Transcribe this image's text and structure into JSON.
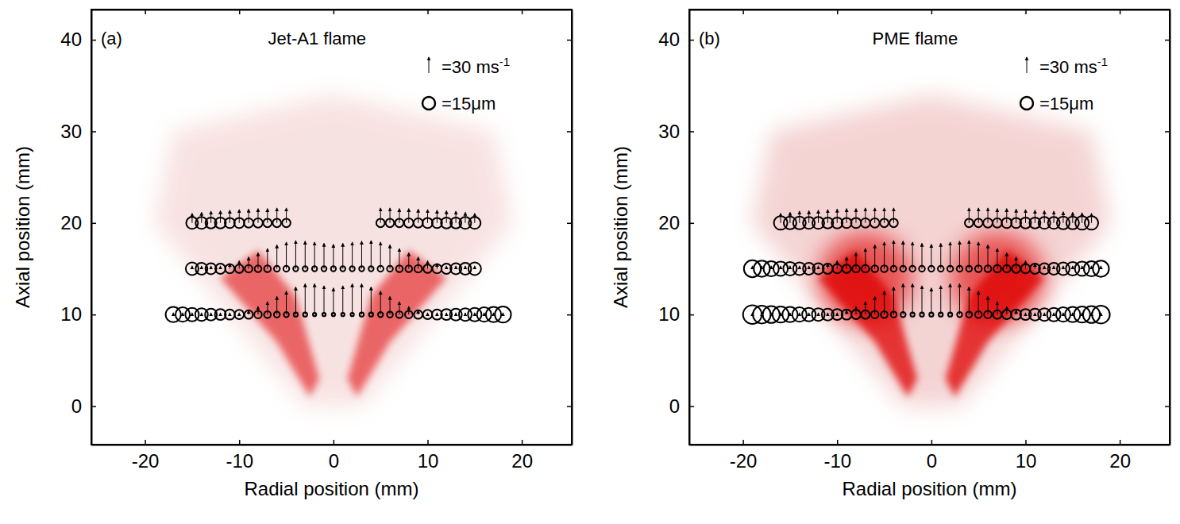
{
  "chart_data": [
    {
      "type": "scatter",
      "title": "Jet-A1 flame",
      "annotations": [
        "(a)"
      ],
      "x_label": "Radial position (mm)",
      "y_label": "Axial position (mm)",
      "xlim": [
        -25.7,
        25.3
      ],
      "ylim": [
        -4.2,
        43.3
      ],
      "xticks": [
        -20,
        -10,
        0,
        10,
        20
      ],
      "yticks": [
        0,
        10,
        20,
        30,
        40
      ],
      "grid": false,
      "legend": "upper right",
      "color": "#000000",
      "marker": "circle",
      "velocity_scale": {
        "value": 30,
        "label": "=30 ms",
        "superscript": "-1"
      },
      "size_scale": {
        "value": 15,
        "label": "=15μm"
      },
      "series": [
        {
          "axial_position": 10,
          "x": [
            -17,
            -16,
            -15,
            -14,
            -13,
            -12,
            -11,
            -10,
            -9,
            -8,
            -7,
            -6,
            -5,
            -4,
            -3,
            -2,
            -1,
            0,
            1,
            2,
            3,
            4,
            5,
            6,
            7,
            8,
            9,
            10,
            11,
            12,
            13,
            14,
            15,
            16,
            17,
            18
          ],
          "velocity": [
            3,
            3,
            3,
            3,
            3,
            3,
            3,
            3,
            8,
            15,
            24,
            34,
            44,
            52,
            58,
            58,
            54,
            50,
            54,
            58,
            58,
            52,
            44,
            34,
            24,
            15,
            8,
            3,
            3,
            3,
            3,
            3,
            3,
            3,
            3,
            3
          ],
          "diameter": [
            18,
            17,
            16,
            15,
            14,
            13,
            12,
            11,
            10,
            9,
            8,
            7,
            6,
            5,
            5,
            4,
            4,
            4,
            4,
            4,
            5,
            5,
            6,
            7,
            8,
            9,
            10,
            11,
            12,
            13,
            14,
            15,
            16,
            17,
            18,
            19
          ]
        },
        {
          "axial_position": 15,
          "x": [
            -15,
            -14,
            -13,
            -12,
            -11,
            -10,
            -9,
            -8,
            -7,
            -6,
            -5,
            -4,
            -3,
            -2,
            -1,
            0,
            1,
            2,
            3,
            4,
            5,
            6,
            7,
            8,
            9,
            10,
            11,
            12,
            13,
            14,
            15
          ],
          "velocity": [
            5,
            5,
            5,
            5,
            10,
            15,
            22,
            30,
            38,
            45,
            50,
            53,
            52,
            50,
            48,
            46,
            48,
            50,
            52,
            53,
            50,
            45,
            38,
            30,
            22,
            15,
            10,
            5,
            5,
            5,
            5
          ],
          "diameter": [
            15,
            14,
            13,
            12,
            11,
            10,
            9,
            8,
            8,
            7,
            7,
            6,
            6,
            6,
            6,
            6,
            6,
            6,
            6,
            6,
            7,
            7,
            8,
            8,
            9,
            10,
            11,
            12,
            13,
            14,
            15
          ]
        },
        {
          "axial_position": 20,
          "x": [
            -15,
            -14,
            -13,
            -12,
            -11,
            -10,
            -9,
            -8,
            -7,
            -6,
            -5,
            5,
            6,
            7,
            8,
            9,
            10,
            11,
            12,
            13,
            14,
            15
          ],
          "velocity": [
            18,
            20,
            22,
            23,
            24,
            25,
            26,
            27,
            27,
            28,
            28,
            28,
            28,
            27,
            27,
            26,
            25,
            24,
            23,
            22,
            20,
            18
          ],
          "diameter": [
            14,
            14,
            13,
            13,
            12,
            12,
            11,
            11,
            10,
            10,
            10,
            10,
            10,
            10,
            11,
            11,
            12,
            12,
            13,
            13,
            14,
            14
          ]
        }
      ]
    },
    {
      "type": "scatter",
      "title": "PME flame",
      "annotations": [
        "(b)"
      ],
      "x_label": "Radial position (mm)",
      "y_label": "Axial position (mm)",
      "xlim": [
        -25.7,
        25.3
      ],
      "ylim": [
        -4.2,
        43.3
      ],
      "xticks": [
        -20,
        -10,
        0,
        10,
        20
      ],
      "yticks": [
        0,
        10,
        20,
        30,
        40
      ],
      "grid": false,
      "legend": "upper right",
      "color": "#000000",
      "marker": "circle",
      "velocity_scale": {
        "value": 30,
        "label": "=30 ms",
        "superscript": "-1"
      },
      "size_scale": {
        "value": 15,
        "label": "=15μm"
      },
      "series": [
        {
          "axial_position": 10,
          "x": [
            -19,
            -18,
            -17,
            -16,
            -15,
            -14,
            -13,
            -12,
            -11,
            -10,
            -9,
            -8,
            -7,
            -6,
            -5,
            -4,
            -3,
            -2,
            -1,
            0,
            1,
            2,
            3,
            4,
            5,
            6,
            7,
            8,
            9,
            10,
            11,
            12,
            13,
            14,
            15,
            16,
            17,
            18
          ],
          "velocity": [
            3,
            3,
            3,
            3,
            3,
            3,
            3,
            3,
            3,
            3,
            8,
            15,
            24,
            34,
            44,
            52,
            58,
            58,
            54,
            50,
            54,
            58,
            58,
            52,
            44,
            34,
            24,
            15,
            8,
            3,
            3,
            3,
            3,
            3,
            3,
            3,
            3,
            3
          ],
          "diameter": [
            22,
            21,
            20,
            19,
            18,
            17,
            16,
            15,
            14,
            13,
            12,
            11,
            10,
            9,
            8,
            7,
            6,
            5,
            5,
            5,
            5,
            5,
            6,
            7,
            8,
            9,
            10,
            11,
            12,
            13,
            14,
            15,
            16,
            17,
            18,
            19,
            20,
            21
          ]
        },
        {
          "axial_position": 15,
          "x": [
            -19,
            -18,
            -17,
            -16,
            -15,
            -14,
            -13,
            -12,
            -11,
            -10,
            -9,
            -8,
            -7,
            -6,
            -5,
            -4,
            -3,
            -2,
            -1,
            0,
            1,
            2,
            3,
            4,
            5,
            6,
            7,
            8,
            9,
            10,
            11,
            12,
            13,
            14,
            15,
            16,
            17,
            18
          ],
          "velocity": [
            5,
            5,
            5,
            5,
            5,
            5,
            5,
            5,
            10,
            15,
            22,
            30,
            38,
            45,
            50,
            53,
            52,
            50,
            48,
            46,
            48,
            50,
            52,
            53,
            50,
            45,
            38,
            30,
            22,
            15,
            10,
            5,
            5,
            5,
            5,
            5,
            5,
            5
          ],
          "diameter": [
            20,
            19,
            18,
            17,
            16,
            15,
            14,
            13,
            12,
            11,
            10,
            9,
            9,
            8,
            8,
            7,
            7,
            7,
            7,
            7,
            7,
            7,
            7,
            7,
            8,
            8,
            9,
            9,
            10,
            11,
            12,
            13,
            14,
            15,
            16,
            17,
            18,
            19
          ]
        },
        {
          "axial_position": 20,
          "x": [
            -16,
            -15,
            -14,
            -13,
            -12,
            -11,
            -10,
            -9,
            -8,
            -7,
            -6,
            -5,
            -4,
            4,
            5,
            6,
            7,
            8,
            9,
            10,
            11,
            12,
            13,
            14,
            15,
            16,
            17
          ],
          "velocity": [
            18,
            20,
            22,
            23,
            24,
            25,
            26,
            27,
            27,
            28,
            28,
            28,
            28,
            28,
            28,
            28,
            27,
            27,
            26,
            25,
            24,
            23,
            22,
            21,
            20,
            19,
            18
          ],
          "diameter": [
            16,
            15,
            15,
            14,
            14,
            13,
            13,
            12,
            12,
            11,
            11,
            10,
            10,
            10,
            10,
            11,
            11,
            12,
            12,
            13,
            13,
            14,
            14,
            15,
            15,
            16,
            16
          ]
        }
      ]
    }
  ]
}
